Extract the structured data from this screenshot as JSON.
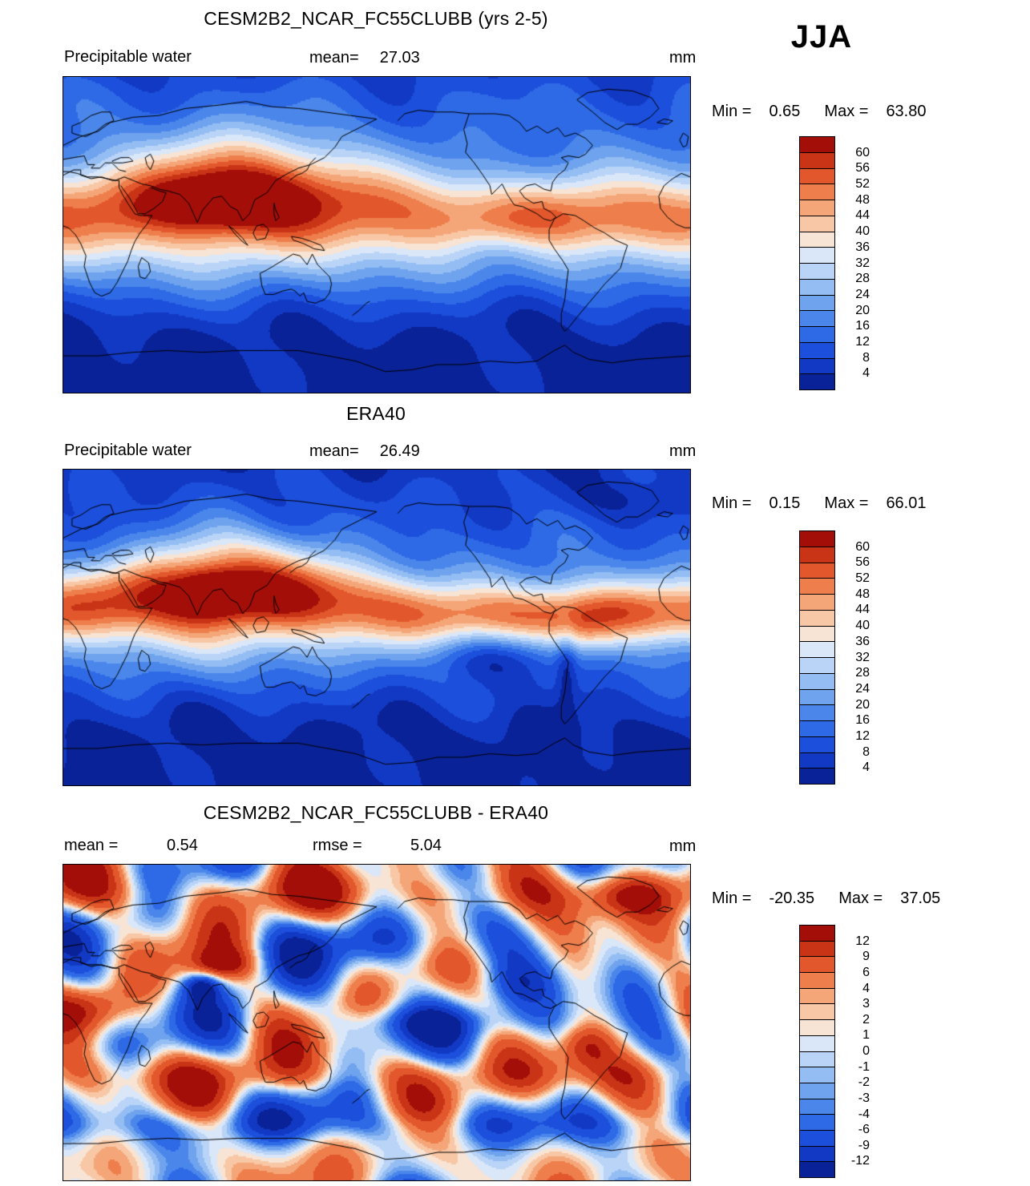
{
  "chart_data": {
    "type": "heatmap",
    "subtype": "global-filled-contour-maps",
    "season": "JJA",
    "projection": "cylindrical-equidistant",
    "lon_range": [
      0,
      360
    ],
    "lat_range": [
      -90,
      90
    ],
    "units": "mm",
    "panels": [
      {
        "id": "model",
        "title": "CESM2B2_NCAR_FC55CLUBB (yrs 2-5)",
        "variable": "Precipitable water",
        "mean_label": "mean=",
        "mean": "27.03",
        "units": "mm",
        "min_label": "Min =",
        "min": "0.65",
        "max_label": "Max =",
        "max": "63.80",
        "colorbar": {
          "levels": [
            4,
            8,
            12,
            16,
            20,
            24,
            28,
            32,
            36,
            40,
            44,
            48,
            52,
            56,
            60
          ],
          "colors": [
            "#0a2297",
            "#1239c4",
            "#1c4fdc",
            "#2e6ae6",
            "#4b87ea",
            "#6fa3ee",
            "#94bdf3",
            "#b9d4f7",
            "#dae7f9",
            "#f8e4d4",
            "#f8c7a5",
            "#f5a679",
            "#ee7f4d",
            "#e2572b",
            "#c93417",
            "#a30f08"
          ]
        }
      },
      {
        "id": "era40",
        "title": "ERA40",
        "variable": "Precipitable water",
        "mean_label": "mean=",
        "mean": "26.49",
        "units": "mm",
        "min_label": "Min =",
        "min": "0.15",
        "max_label": "Max =",
        "max": "66.01",
        "colorbar": {
          "levels": [
            4,
            8,
            12,
            16,
            20,
            24,
            28,
            32,
            36,
            40,
            44,
            48,
            52,
            56,
            60
          ],
          "colors": [
            "#0a2297",
            "#1239c4",
            "#1c4fdc",
            "#2e6ae6",
            "#4b87ea",
            "#6fa3ee",
            "#94bdf3",
            "#b9d4f7",
            "#dae7f9",
            "#f8e4d4",
            "#f8c7a5",
            "#f5a679",
            "#ee7f4d",
            "#e2572b",
            "#c93417",
            "#a30f08"
          ]
        }
      },
      {
        "id": "difference",
        "title": "CESM2B2_NCAR_FC55CLUBB - ERA40",
        "mean_label": "mean =",
        "mean": "0.54",
        "rmse_label": "rmse =",
        "rmse": "5.04",
        "units": "mm",
        "min_label": "Min =",
        "min": "-20.35",
        "max_label": "Max =",
        "max": "37.05",
        "colorbar": {
          "levels": [
            -12,
            -9,
            -6,
            -4,
            -3,
            -2,
            -1,
            0,
            1,
            2,
            3,
            4,
            6,
            9,
            12
          ],
          "colors": [
            "#0a2297",
            "#1239c4",
            "#1c4fdc",
            "#2e6ae6",
            "#4b87ea",
            "#6fa3ee",
            "#94bdf3",
            "#b9d4f7",
            "#dae7f9",
            "#f8e4d4",
            "#f8c7a5",
            "#f5a679",
            "#ee7f4d",
            "#e2572b",
            "#c93417",
            "#a30f08"
          ]
        }
      }
    ]
  }
}
